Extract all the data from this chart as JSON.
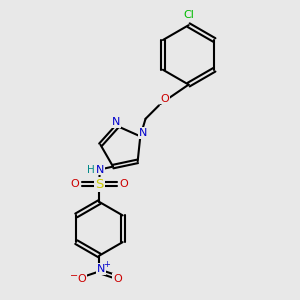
{
  "background_color": "#e8e8e8",
  "bond_color": "#000000",
  "atom_colors": {
    "N": "#0000cc",
    "O": "#cc0000",
    "S": "#cccc00",
    "Cl": "#00bb00",
    "H": "#008888",
    "C": "#000000"
  },
  "figsize": [
    3.0,
    3.0
  ],
  "dpi": 100
}
